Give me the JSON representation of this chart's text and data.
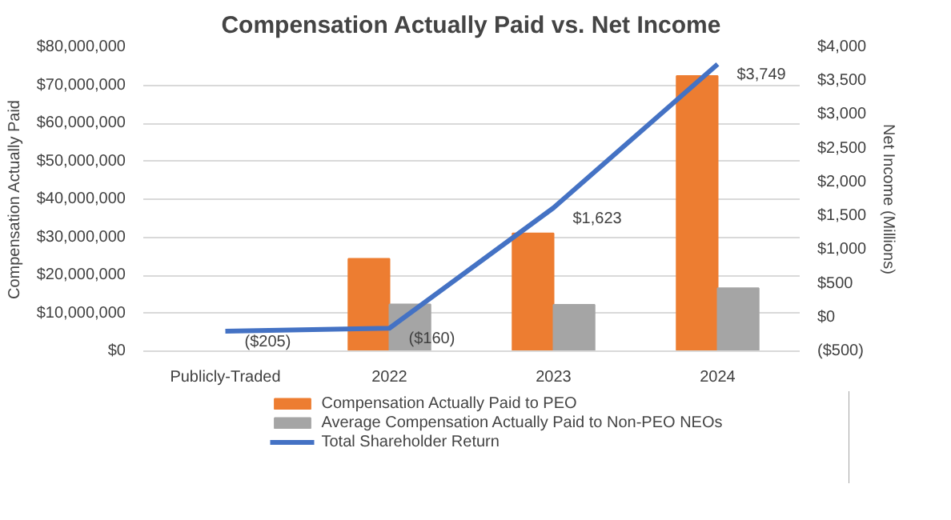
{
  "chart_data": {
    "type": "bar",
    "title": "Compensation Actually Paid vs. Net Income",
    "ylabel": "Compensation Actually Paid",
    "y2label": "Net Income (Millions)",
    "categories": [
      "Publicly-Traded",
      "2022",
      "2023",
      "2024"
    ],
    "series": [
      {
        "name": "Compensation Actually Paid to PEO",
        "color": "#ed7d31",
        "values": [
          null,
          24300000,
          31000000,
          72400000
        ]
      },
      {
        "name": "Average Compensation Actually Paid to Non-PEO NEOs",
        "color": "#a5a5a5",
        "values": [
          null,
          12300000,
          12200000,
          16600000
        ]
      },
      {
        "name": "Total Shareholder Return",
        "type": "line",
        "axis": "y2",
        "color": "#4472c4",
        "values": [
          -205,
          -160,
          1623,
          3749
        ],
        "value_labels": [
          "($205)",
          "($160)",
          "$1,623",
          "$3,749"
        ]
      }
    ],
    "ylim": [
      0,
      80000000
    ],
    "yticks": [
      {
        "value": 0,
        "label": "$0"
      },
      {
        "value": 10000000,
        "label": "$10,000,000"
      },
      {
        "value": 20000000,
        "label": "$20,000,000"
      },
      {
        "value": 30000000,
        "label": "$30,000,000"
      },
      {
        "value": 40000000,
        "label": "$40,000,000"
      },
      {
        "value": 50000000,
        "label": "$50,000,000"
      },
      {
        "value": 60000000,
        "label": "$60,000,000"
      },
      {
        "value": 70000000,
        "label": "$70,000,000"
      },
      {
        "value": 80000000,
        "label": "$80,000,000"
      }
    ],
    "y2lim": [
      -500,
      4000
    ],
    "y2ticks": [
      {
        "value": -500,
        "label": "($500)"
      },
      {
        "value": 0,
        "label": "$0"
      },
      {
        "value": 500,
        "label": "$500"
      },
      {
        "value": 1000,
        "label": "$1,000"
      },
      {
        "value": 1500,
        "label": "$1,500"
      },
      {
        "value": 2000,
        "label": "$2,000"
      },
      {
        "value": 2500,
        "label": "$2,500"
      },
      {
        "value": 3000,
        "label": "$3,000"
      },
      {
        "value": 3500,
        "label": "$3,500"
      },
      {
        "value": 4000,
        "label": "$4,000"
      }
    ],
    "grid": "y",
    "legend": "bottom"
  }
}
